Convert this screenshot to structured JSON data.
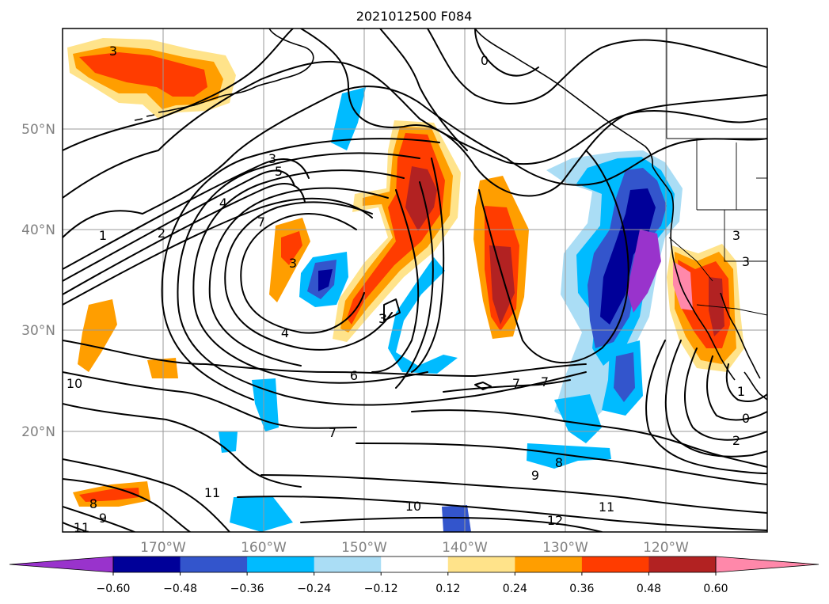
{
  "title": "2021012500 F084",
  "lat_labels": [
    "50°N",
    "40°N",
    "30°N",
    "20°N"
  ],
  "lon_labels": [
    "170°W",
    "160°W",
    "150°W",
    "140°W",
    "130°W",
    "120°W"
  ],
  "colorbar": {
    "tick_labels": [
      "−0.60",
      "−0.48",
      "−0.36",
      "−0.24",
      "−0.12",
      "0.12",
      "0.24",
      "0.36",
      "0.48",
      "0.60"
    ],
    "colors": [
      "#9933cc",
      "#000099",
      "#3355cc",
      "#00bbff",
      "#aaddf5",
      "#ffffff",
      "#ffe38a",
      "#ff9e00",
      "#ff3c00",
      "#b22222",
      "#ff88aa"
    ]
  },
  "contour_labels": [
    "3",
    "0",
    "3",
    "5",
    "4",
    "2",
    "1",
    "7",
    "3",
    "3",
    "4",
    "3",
    "6",
    "7",
    "7",
    "10",
    "8",
    "9",
    "7",
    "8",
    "9",
    "10",
    "11",
    "12",
    "11",
    "11",
    "3",
    "3",
    "1",
    "0",
    "2"
  ],
  "chart_data": {
    "type": "map",
    "title": "2021012500 F084",
    "lat_range": [
      10,
      60
    ],
    "lon_range": [
      -180,
      -110
    ],
    "lat_ticks": [
      50,
      40,
      30,
      20
    ],
    "lon_ticks": [
      -170,
      -160,
      -150,
      -140,
      -130,
      -120
    ],
    "colorbar_levels": [
      -0.6,
      -0.48,
      -0.36,
      -0.24,
      -0.12,
      0.12,
      0.24,
      0.36,
      0.48,
      0.6
    ],
    "contour_values": [
      0,
      1,
      2,
      3,
      4,
      5,
      6,
      7,
      8,
      9,
      10,
      11,
      12
    ]
  }
}
